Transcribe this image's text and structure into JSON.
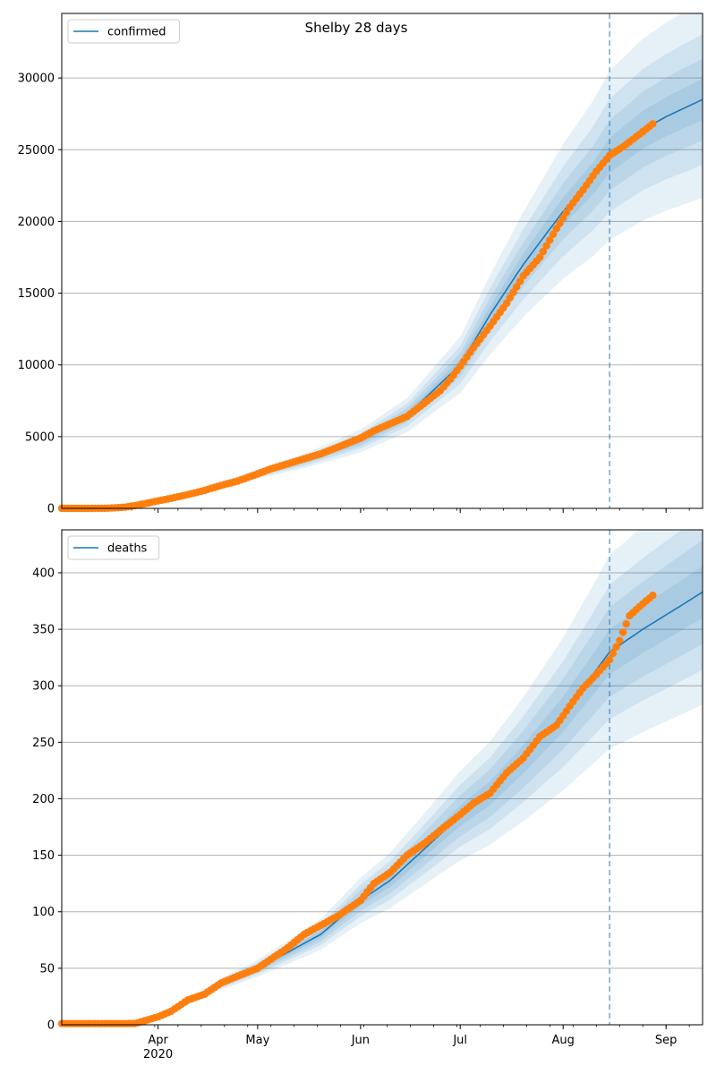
{
  "figure_title": "Shelby 28 days",
  "colors": {
    "model": "#1f77b4",
    "observed": "#ff7f0e",
    "band": "#1f77b4",
    "grid": "#b0b0b0",
    "forecast_line": "#1f77b4"
  },
  "chart_data": [
    {
      "type": "line",
      "name": "confirmed-panel",
      "legend": "confirmed",
      "legend_placement": "top-left",
      "grid": "horizontal",
      "x_axis": {
        "range": [
          "2020-03-03",
          "2020-09-12"
        ],
        "month_ticks": [
          {
            "date": "2020-04-01",
            "label": "Apr",
            "sublabel": "2020"
          },
          {
            "date": "2020-05-01",
            "label": "May"
          },
          {
            "date": "2020-06-01",
            "label": "Jun"
          },
          {
            "date": "2020-07-01",
            "label": "Jul"
          },
          {
            "date": "2020-08-01",
            "label": "Aug"
          },
          {
            "date": "2020-09-01",
            "label": "Sep"
          }
        ],
        "show_labels": false
      },
      "y_axis": {
        "range": [
          0,
          34500
        ],
        "ticks": [
          0,
          5000,
          10000,
          15000,
          20000,
          25000,
          30000
        ]
      },
      "forecast_start": "2020-08-15",
      "model_series": {
        "name": "confirmed",
        "points": [
          [
            "2020-03-03",
            0
          ],
          [
            "2020-03-20",
            30
          ],
          [
            "2020-03-25",
            150
          ],
          [
            "2020-04-01",
            500
          ],
          [
            "2020-04-10",
            1000
          ],
          [
            "2020-04-20",
            1600
          ],
          [
            "2020-05-01",
            2400
          ],
          [
            "2020-05-15",
            3300
          ],
          [
            "2020-06-01",
            4700
          ],
          [
            "2020-06-15",
            6500
          ],
          [
            "2020-07-01",
            10000
          ],
          [
            "2020-07-10",
            13500
          ],
          [
            "2020-07-20",
            17000
          ],
          [
            "2020-08-01",
            20700
          ],
          [
            "2020-08-10",
            23000
          ],
          [
            "2020-08-15",
            24600
          ],
          [
            "2020-08-20",
            25500
          ],
          [
            "2020-08-25",
            26400
          ],
          [
            "2020-09-01",
            27300
          ],
          [
            "2020-09-12",
            28500
          ]
        ],
        "band_offsets": [
          0.05,
          0.1,
          0.16,
          0.24
        ]
      },
      "observed_series": {
        "points": [
          [
            "2020-03-03",
            0
          ],
          [
            "2020-03-10",
            0
          ],
          [
            "2020-03-17",
            10
          ],
          [
            "2020-03-22",
            80
          ],
          [
            "2020-03-26",
            230
          ],
          [
            "2020-04-01",
            520
          ],
          [
            "2020-04-05",
            700
          ],
          [
            "2020-04-10",
            960
          ],
          [
            "2020-04-15",
            1250
          ],
          [
            "2020-04-20",
            1600
          ],
          [
            "2020-04-25",
            1900
          ],
          [
            "2020-05-01",
            2400
          ],
          [
            "2020-05-05",
            2750
          ],
          [
            "2020-05-10",
            3100
          ],
          [
            "2020-05-15",
            3450
          ],
          [
            "2020-05-20",
            3800
          ],
          [
            "2020-05-25",
            4250
          ],
          [
            "2020-06-01",
            4900
          ],
          [
            "2020-06-05",
            5400
          ],
          [
            "2020-06-10",
            5900
          ],
          [
            "2020-06-15",
            6400
          ],
          [
            "2020-06-20",
            7300
          ],
          [
            "2020-06-25",
            8200
          ],
          [
            "2020-06-28",
            9000
          ],
          [
            "2020-07-01",
            9900
          ],
          [
            "2020-07-05",
            11200
          ],
          [
            "2020-07-10",
            12700
          ],
          [
            "2020-07-15",
            14300
          ],
          [
            "2020-07-20",
            16200
          ],
          [
            "2020-07-25",
            17500
          ],
          [
            "2020-07-30",
            19500
          ],
          [
            "2020-08-03",
            21000
          ],
          [
            "2020-08-07",
            22200
          ],
          [
            "2020-08-11",
            23500
          ],
          [
            "2020-08-15",
            24600
          ],
          [
            "2020-08-19",
            25200
          ],
          [
            "2020-08-23",
            25900
          ],
          [
            "2020-08-28",
            26800
          ]
        ]
      }
    },
    {
      "type": "line",
      "name": "deaths-panel",
      "legend": "deaths",
      "legend_placement": "top-left",
      "grid": "horizontal",
      "x_axis": {
        "range": [
          "2020-03-03",
          "2020-09-12"
        ],
        "month_ticks": [
          {
            "date": "2020-04-01",
            "label": "Apr",
            "sublabel": "2020"
          },
          {
            "date": "2020-05-01",
            "label": "May"
          },
          {
            "date": "2020-06-01",
            "label": "Jun"
          },
          {
            "date": "2020-07-01",
            "label": "Jul"
          },
          {
            "date": "2020-08-01",
            "label": "Aug"
          },
          {
            "date": "2020-09-01",
            "label": "Sep"
          }
        ],
        "show_labels": true
      },
      "y_axis": {
        "range": [
          0,
          438
        ],
        "ticks": [
          0,
          50,
          100,
          150,
          200,
          250,
          300,
          350,
          400
        ]
      },
      "forecast_start": "2020-08-15",
      "model_series": {
        "name": "deaths",
        "points": [
          [
            "2020-03-03",
            0
          ],
          [
            "2020-03-20",
            1
          ],
          [
            "2020-04-01",
            6
          ],
          [
            "2020-04-10",
            20
          ],
          [
            "2020-04-20",
            36
          ],
          [
            "2020-05-01",
            50
          ],
          [
            "2020-05-10",
            64
          ],
          [
            "2020-05-20",
            80
          ],
          [
            "2020-06-01",
            110
          ],
          [
            "2020-06-10",
            128
          ],
          [
            "2020-06-20",
            155
          ],
          [
            "2020-07-01",
            185
          ],
          [
            "2020-07-10",
            205
          ],
          [
            "2020-07-20",
            235
          ],
          [
            "2020-08-01",
            275
          ],
          [
            "2020-08-10",
            310
          ],
          [
            "2020-08-15",
            330
          ],
          [
            "2020-08-25",
            350
          ],
          [
            "2020-09-05",
            370
          ],
          [
            "2020-09-12",
            383
          ]
        ],
        "band_offsets": [
          0.06,
          0.12,
          0.18,
          0.26
        ]
      },
      "observed_series": {
        "points": [
          [
            "2020-03-03",
            1
          ],
          [
            "2020-03-15",
            1
          ],
          [
            "2020-03-25",
            1
          ],
          [
            "2020-04-01",
            7
          ],
          [
            "2020-04-05",
            12
          ],
          [
            "2020-04-10",
            22
          ],
          [
            "2020-04-15",
            27
          ],
          [
            "2020-04-20",
            37
          ],
          [
            "2020-04-25",
            43
          ],
          [
            "2020-05-01",
            50
          ],
          [
            "2020-05-05",
            58
          ],
          [
            "2020-05-10",
            68
          ],
          [
            "2020-05-15",
            80
          ],
          [
            "2020-05-20",
            88
          ],
          [
            "2020-05-25",
            96
          ],
          [
            "2020-06-01",
            110
          ],
          [
            "2020-06-05",
            125
          ],
          [
            "2020-06-10",
            135
          ],
          [
            "2020-06-15",
            150
          ],
          [
            "2020-06-20",
            160
          ],
          [
            "2020-06-25",
            172
          ],
          [
            "2020-07-01",
            186
          ],
          [
            "2020-07-05",
            196
          ],
          [
            "2020-07-10",
            205
          ],
          [
            "2020-07-15",
            223
          ],
          [
            "2020-07-20",
            236
          ],
          [
            "2020-07-25",
            255
          ],
          [
            "2020-07-30",
            265
          ],
          [
            "2020-08-03",
            282
          ],
          [
            "2020-08-07",
            298
          ],
          [
            "2020-08-11",
            310
          ],
          [
            "2020-08-15",
            323
          ],
          [
            "2020-08-18",
            340
          ],
          [
            "2020-08-21",
            362
          ],
          [
            "2020-08-24",
            370
          ],
          [
            "2020-08-28",
            380
          ]
        ]
      }
    }
  ]
}
